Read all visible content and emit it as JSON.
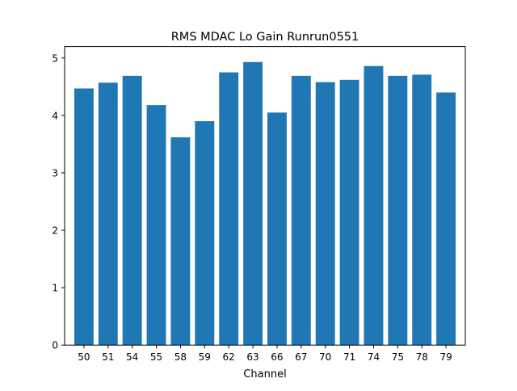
{
  "chart_data": {
    "type": "bar",
    "title": "RMS MDAC Lo Gain Runrun0551",
    "xlabel": "Channel",
    "ylabel": "",
    "categories": [
      "50",
      "51",
      "54",
      "55",
      "58",
      "59",
      "62",
      "63",
      "66",
      "67",
      "70",
      "71",
      "74",
      "75",
      "78",
      "79"
    ],
    "values": [
      4.47,
      4.57,
      4.69,
      4.18,
      3.62,
      3.9,
      4.75,
      4.93,
      4.05,
      4.69,
      4.58,
      4.62,
      4.86,
      4.69,
      4.71,
      4.4
    ],
    "ylim": [
      0,
      5.2
    ],
    "yticks": [
      "0",
      "1",
      "2",
      "3",
      "4",
      "5"
    ],
    "bar_color": "#1f77b4",
    "grid": false,
    "legend": "none"
  }
}
